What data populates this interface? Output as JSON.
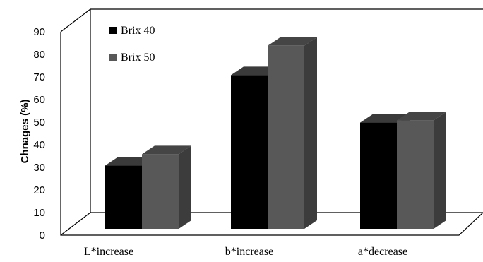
{
  "chart_data": {
    "type": "bar",
    "view": "3d-clustered",
    "categories": [
      "L*increase",
      "b*increase",
      "a*decrease"
    ],
    "series": [
      {
        "name": "Brix 40",
        "values": [
          28,
          68,
          47
        ],
        "color": "#000000"
      },
      {
        "name": "Brix 50",
        "values": [
          33,
          81,
          48
        ],
        "color": "#585858"
      }
    ],
    "ylabel": "Chnages (%)",
    "ylim": [
      0,
      90
    ],
    "yticks": [
      "0",
      "10",
      "20",
      "30",
      "40",
      "50",
      "60",
      "70",
      "80",
      "90"
    ],
    "grid": false,
    "legend_position": "top-left"
  }
}
